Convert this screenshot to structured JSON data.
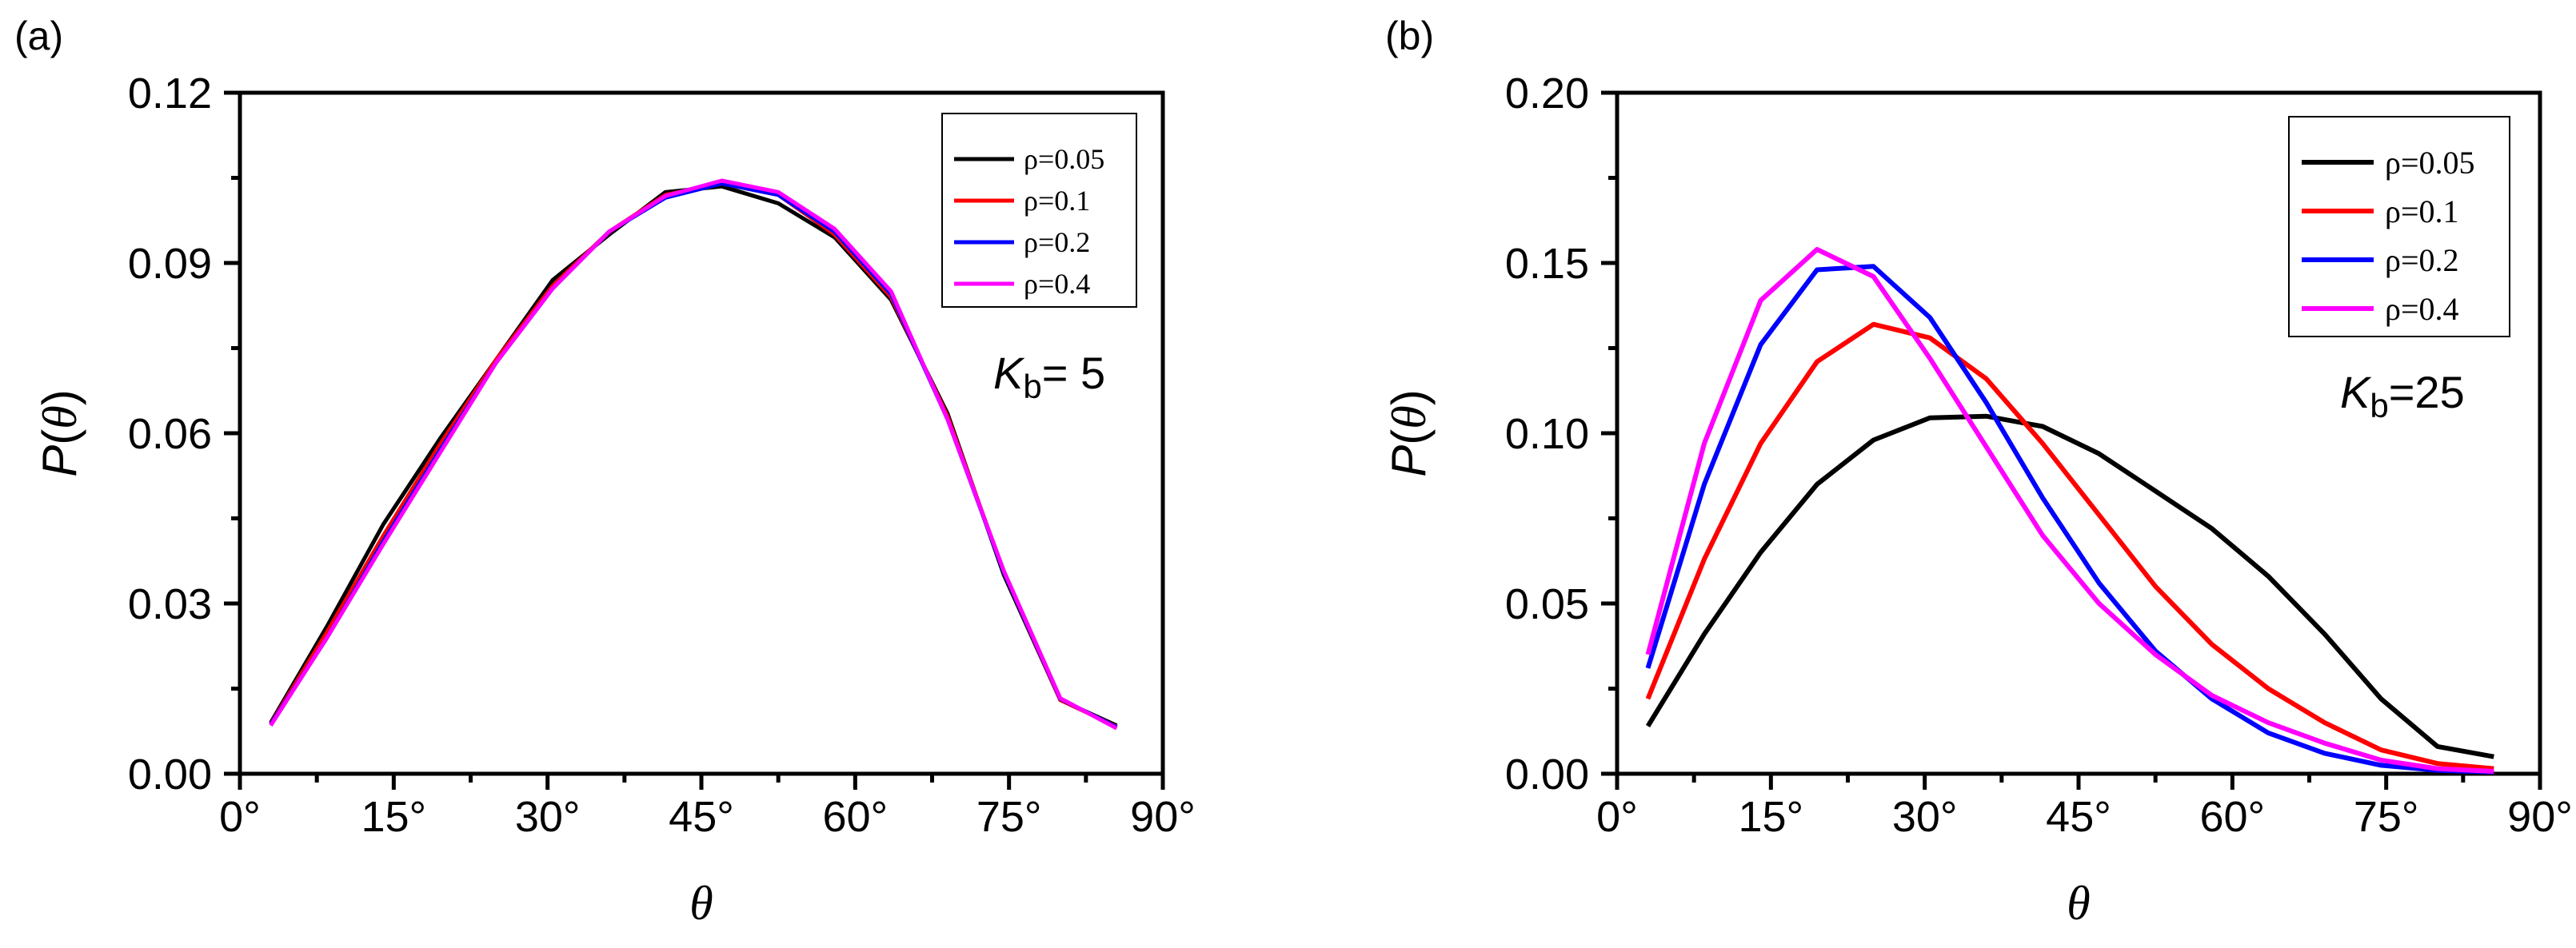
{
  "chart_data": [
    {
      "type": "line",
      "panel_label": "(a)",
      "xlabel": "θ",
      "ylabel": {
        "prefix": "P(",
        "var": "θ",
        "suffix": ")"
      },
      "xlim": [
        0,
        90
      ],
      "ylim": [
        0,
        0.12
      ],
      "x_ticks": [
        0,
        15,
        30,
        45,
        60,
        75,
        90
      ],
      "x_tick_labels": [
        "0°",
        "15°",
        "30°",
        "45°",
        "60°",
        "75°",
        "90°"
      ],
      "y_ticks": [
        0,
        0.03,
        0.06,
        0.09,
        0.12
      ],
      "y_tick_labels": [
        "0.00",
        "0.03",
        "0.06",
        "0.09",
        "0.12"
      ],
      "annotation": {
        "base": "K",
        "sub": "b",
        "value": "= 5"
      },
      "legend_position": "top-right",
      "x": [
        3,
        8.5,
        14,
        19.5,
        25,
        30.5,
        36,
        41.5,
        47,
        52.5,
        58,
        63.5,
        69,
        74.5,
        80,
        85.5
      ],
      "series": [
        {
          "name": "ρ=0.05",
          "color": "#000000",
          "values": [
            0.009,
            0.026,
            0.044,
            0.059,
            0.073,
            0.087,
            0.095,
            0.1025,
            0.1035,
            0.1005,
            0.0945,
            0.0835,
            0.0635,
            0.035,
            0.013,
            0.0085
          ]
        },
        {
          "name": "ρ=0.1",
          "color": "#ff0000",
          "values": [
            0.0088,
            0.025,
            0.042,
            0.058,
            0.073,
            0.086,
            0.0955,
            0.102,
            0.104,
            0.102,
            0.095,
            0.084,
            0.063,
            0.0355,
            0.013,
            0.0083
          ]
        },
        {
          "name": "ρ=0.2",
          "color": "#0000ff",
          "values": [
            0.0087,
            0.024,
            0.041,
            0.057,
            0.0725,
            0.0855,
            0.0955,
            0.1015,
            0.104,
            0.102,
            0.0955,
            0.0845,
            0.0625,
            0.0355,
            0.0132,
            0.0082
          ]
        },
        {
          "name": "ρ=0.4",
          "color": "#ff00ff",
          "values": [
            0.0085,
            0.024,
            0.0405,
            0.0565,
            0.0725,
            0.0855,
            0.0955,
            0.1018,
            0.1045,
            0.1025,
            0.096,
            0.085,
            0.0625,
            0.0357,
            0.0133,
            0.008
          ]
        }
      ]
    },
    {
      "type": "line",
      "panel_label": "(b)",
      "xlabel": "θ",
      "ylabel": {
        "prefix": "P(",
        "var": "θ",
        "suffix": ")"
      },
      "xlim": [
        0,
        90
      ],
      "ylim": [
        0,
        0.2
      ],
      "x_ticks": [
        0,
        15,
        30,
        45,
        60,
        75,
        90
      ],
      "x_tick_labels": [
        "0°",
        "15°",
        "30°",
        "45°",
        "60°",
        "75°",
        "90°"
      ],
      "y_ticks": [
        0,
        0.05,
        0.1,
        0.15,
        0.2
      ],
      "y_tick_labels": [
        "0.00",
        "0.05",
        "0.10",
        "0.15",
        "0.20"
      ],
      "annotation": {
        "base": "K",
        "sub": "b",
        "value": "=25"
      },
      "legend_position": "top-right",
      "x": [
        3,
        8.5,
        14,
        19.5,
        25,
        30.5,
        36,
        41.5,
        47,
        52.5,
        58,
        63.5,
        69,
        74.5,
        80,
        85.5
      ],
      "series": [
        {
          "name": "ρ=0.05",
          "color": "#000000",
          "values": [
            0.014,
            0.041,
            0.065,
            0.085,
            0.098,
            0.1045,
            0.105,
            0.102,
            0.094,
            0.083,
            0.072,
            0.058,
            0.041,
            0.022,
            0.008,
            0.005
          ]
        },
        {
          "name": "ρ=0.1",
          "color": "#ff0000",
          "values": [
            0.022,
            0.063,
            0.097,
            0.121,
            0.132,
            0.128,
            0.116,
            0.097,
            0.076,
            0.055,
            0.038,
            0.025,
            0.015,
            0.007,
            0.003,
            0.0015
          ]
        },
        {
          "name": "ρ=0.2",
          "color": "#0000ff",
          "values": [
            0.031,
            0.085,
            0.126,
            0.148,
            0.149,
            0.134,
            0.109,
            0.081,
            0.056,
            0.036,
            0.022,
            0.012,
            0.006,
            0.0025,
            0.001,
            0.0005
          ]
        },
        {
          "name": "ρ=0.4",
          "color": "#ff00ff",
          "values": [
            0.035,
            0.097,
            0.139,
            0.154,
            0.146,
            0.122,
            0.096,
            0.07,
            0.05,
            0.035,
            0.023,
            0.015,
            0.009,
            0.004,
            0.0015,
            0.0007
          ]
        }
      ]
    }
  ]
}
